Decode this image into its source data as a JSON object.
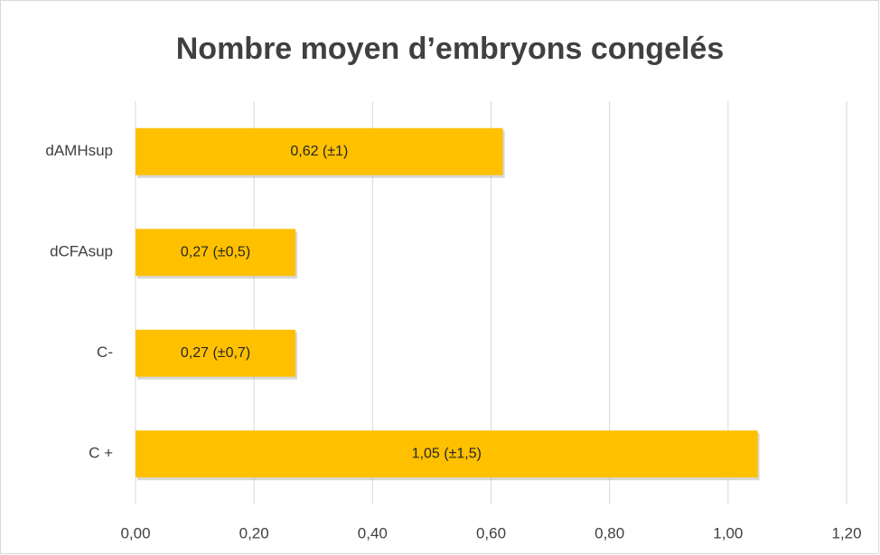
{
  "chart_data": {
    "type": "bar",
    "orientation": "horizontal",
    "title": "Nombre moyen d’embryons congelés",
    "categories": [
      "dAMHsup",
      "dCFAsup",
      "C-",
      "C +"
    ],
    "values": [
      0.62,
      0.27,
      0.27,
      1.05
    ],
    "value_labels": [
      "0,62 (±1)",
      "0,27 (±0,5)",
      "0,27 (±0,7)",
      "1,05 (±1,5)"
    ],
    "color": "#ffc000",
    "xlim": [
      0,
      1.2
    ],
    "xticks": [
      {
        "value": 0,
        "label": "0,00"
      },
      {
        "value": 0.2,
        "label": "0,20"
      },
      {
        "value": 0.4,
        "label": "0,40"
      },
      {
        "value": 0.6,
        "label": "0,60"
      },
      {
        "value": 0.8,
        "label": "0,80"
      },
      {
        "value": 1.0,
        "label": "1,00"
      },
      {
        "value": 1.2,
        "label": "1,20"
      }
    ],
    "grid": true
  }
}
